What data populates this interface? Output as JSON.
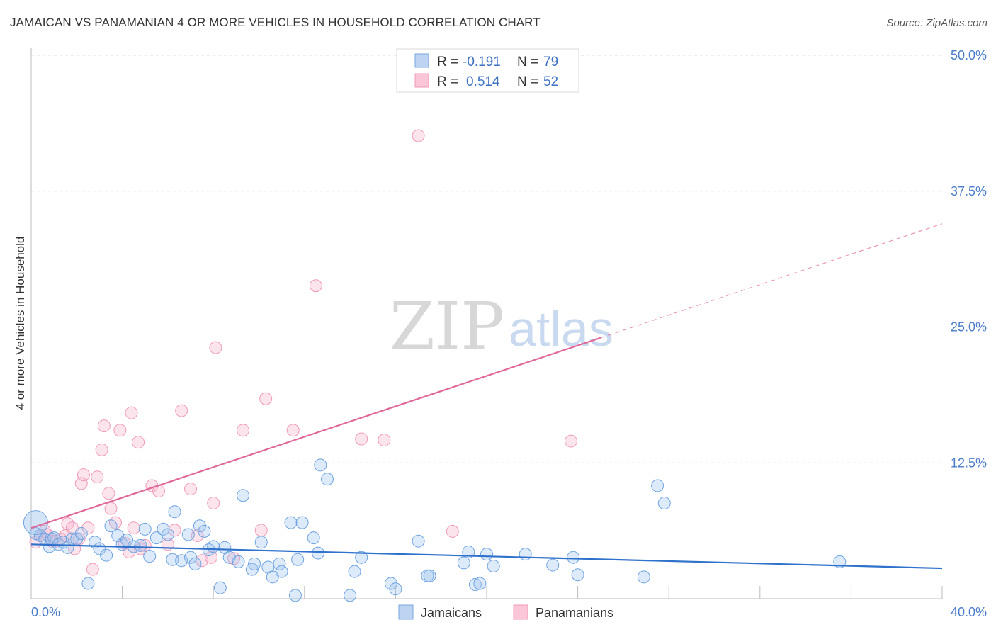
{
  "title": "JAMAICAN VS PANAMANIAN 4 OR MORE VEHICLES IN HOUSEHOLD CORRELATION CHART",
  "source": "Source: ZipAtlas.com",
  "watermark": {
    "zip": "ZIP",
    "atlas": "atlas"
  },
  "chart_data": {
    "type": "scatter",
    "title": "JAMAICAN VS PANAMANIAN 4 OR MORE VEHICLES IN HOUSEHOLD CORRELATION CHART",
    "xlabel": "",
    "ylabel": "4 or more Vehicles in Household",
    "xlim": [
      0,
      40
    ],
    "ylim": [
      0,
      50
    ],
    "x_tick_labels": [
      "0.0%",
      "40.0%"
    ],
    "y_ticks": [
      12.5,
      25.0,
      37.5,
      50.0
    ],
    "y_tick_labels": [
      "12.5%",
      "25.0%",
      "37.5%",
      "50.0%"
    ],
    "grid": true,
    "legend_position": "bottom-center",
    "colors": {
      "jamaicans": "#6fa3e0",
      "panamanians": "#f093b3",
      "jam_line": "#2f72cc",
      "pan_line": "#e0699a"
    },
    "stats": [
      {
        "r_label": "R =",
        "r": "-0.191",
        "n_label": "N =",
        "n": "79"
      },
      {
        "r_label": "R =",
        "r": "0.514",
        "n_label": "N =",
        "n": "52"
      }
    ],
    "series": [
      {
        "name": "Jamaicans",
        "trend": {
          "x": [
            0,
            40
          ],
          "y": [
            5.0,
            2.8
          ]
        },
        "points": [
          [
            0.2,
            6.0
          ],
          [
            0.4,
            5.8
          ],
          [
            0.6,
            5.5
          ],
          [
            0.8,
            4.8
          ],
          [
            0.9,
            5.5
          ],
          [
            1.0,
            5.6
          ],
          [
            1.2,
            5.0
          ],
          [
            1.4,
            5.2
          ],
          [
            1.6,
            4.7
          ],
          [
            1.8,
            5.5
          ],
          [
            2.0,
            5.5
          ],
          [
            2.2,
            6.0
          ],
          [
            2.5,
            1.4
          ],
          [
            2.8,
            5.2
          ],
          [
            3.0,
            4.6
          ],
          [
            3.3,
            4.0
          ],
          [
            3.5,
            6.7
          ],
          [
            3.8,
            5.8
          ],
          [
            4.0,
            5.0
          ],
          [
            4.2,
            5.4
          ],
          [
            4.5,
            4.8
          ],
          [
            4.8,
            4.9
          ],
          [
            5.0,
            6.4
          ],
          [
            5.2,
            3.9
          ],
          [
            5.5,
            5.6
          ],
          [
            5.8,
            6.4
          ],
          [
            6.0,
            5.9
          ],
          [
            6.2,
            3.6
          ],
          [
            6.3,
            8.0
          ],
          [
            6.6,
            3.5
          ],
          [
            6.9,
            5.9
          ],
          [
            7.0,
            3.8
          ],
          [
            7.2,
            3.2
          ],
          [
            7.4,
            6.7
          ],
          [
            7.6,
            6.2
          ],
          [
            7.8,
            4.5
          ],
          [
            8.0,
            4.8
          ],
          [
            8.3,
            1.0
          ],
          [
            8.5,
            4.7
          ],
          [
            8.7,
            3.8
          ],
          [
            9.1,
            3.4
          ],
          [
            9.3,
            9.5
          ],
          [
            9.7,
            2.7
          ],
          [
            9.8,
            3.2
          ],
          [
            10.1,
            5.2
          ],
          [
            10.4,
            2.9
          ],
          [
            10.6,
            2.0
          ],
          [
            10.9,
            3.2
          ],
          [
            11.0,
            2.5
          ],
          [
            11.4,
            7.0
          ],
          [
            11.6,
            0.3
          ],
          [
            11.7,
            3.6
          ],
          [
            11.9,
            7.0
          ],
          [
            12.4,
            5.6
          ],
          [
            12.6,
            4.2
          ],
          [
            12.7,
            12.3
          ],
          [
            13.0,
            11.0
          ],
          [
            14.0,
            0.3
          ],
          [
            14.2,
            2.5
          ],
          [
            14.5,
            3.8
          ],
          [
            15.8,
            1.4
          ],
          [
            16.0,
            0.9
          ],
          [
            17.0,
            5.3
          ],
          [
            17.4,
            2.1
          ],
          [
            17.5,
            2.1
          ],
          [
            19.0,
            3.3
          ],
          [
            19.2,
            4.3
          ],
          [
            19.5,
            1.3
          ],
          [
            19.7,
            1.4
          ],
          [
            20.0,
            4.1
          ],
          [
            20.3,
            3.0
          ],
          [
            21.7,
            4.1
          ],
          [
            22.9,
            3.1
          ],
          [
            23.8,
            3.8
          ],
          [
            24.0,
            2.2
          ],
          [
            26.9,
            2.0
          ],
          [
            27.5,
            10.4
          ],
          [
            27.8,
            8.8
          ],
          [
            35.5,
            3.4
          ]
        ],
        "big_point": [
          0.2,
          7.0
        ]
      },
      {
        "name": "Panamanians",
        "trend": {
          "x": [
            0,
            25
          ],
          "y": [
            6.5,
            24.0
          ]
        },
        "trend_dashed": {
          "x": [
            25,
            40
          ],
          "y": [
            24.0,
            34.5
          ]
        },
        "points": [
          [
            0.2,
            5.2
          ],
          [
            0.4,
            5.8
          ],
          [
            0.6,
            6.2
          ],
          [
            0.7,
            5.9
          ],
          [
            0.9,
            5.3
          ],
          [
            1.1,
            5.3
          ],
          [
            1.3,
            5.5
          ],
          [
            1.5,
            5.8
          ],
          [
            1.6,
            6.9
          ],
          [
            1.8,
            6.5
          ],
          [
            1.9,
            4.6
          ],
          [
            2.1,
            5.5
          ],
          [
            2.2,
            10.6
          ],
          [
            2.3,
            11.4
          ],
          [
            2.5,
            6.5
          ],
          [
            2.7,
            2.7
          ],
          [
            2.9,
            11.2
          ],
          [
            3.1,
            13.7
          ],
          [
            3.2,
            15.9
          ],
          [
            3.4,
            9.7
          ],
          [
            3.5,
            8.3
          ],
          [
            3.7,
            7.0
          ],
          [
            3.9,
            15.5
          ],
          [
            4.1,
            5.1
          ],
          [
            4.3,
            4.3
          ],
          [
            4.4,
            17.1
          ],
          [
            4.5,
            6.5
          ],
          [
            4.7,
            14.4
          ],
          [
            4.8,
            4.6
          ],
          [
            5.0,
            4.9
          ],
          [
            5.3,
            10.4
          ],
          [
            5.6,
            9.9
          ],
          [
            6.0,
            5.0
          ],
          [
            6.3,
            6.3
          ],
          [
            6.6,
            17.3
          ],
          [
            7.0,
            10.1
          ],
          [
            7.3,
            5.8
          ],
          [
            7.5,
            3.5
          ],
          [
            7.9,
            3.8
          ],
          [
            8.0,
            8.8
          ],
          [
            8.1,
            23.1
          ],
          [
            8.9,
            3.7
          ],
          [
            9.3,
            15.5
          ],
          [
            10.1,
            6.3
          ],
          [
            10.3,
            18.4
          ],
          [
            11.5,
            15.5
          ],
          [
            12.5,
            28.8
          ],
          [
            14.5,
            14.7
          ],
          [
            15.5,
            14.6
          ],
          [
            17.0,
            42.6
          ],
          [
            18.5,
            6.2
          ],
          [
            23.7,
            14.5
          ]
        ]
      }
    ]
  },
  "legend": {
    "items": [
      {
        "label": "Jamaicans"
      },
      {
        "label": "Panamanians"
      }
    ]
  }
}
